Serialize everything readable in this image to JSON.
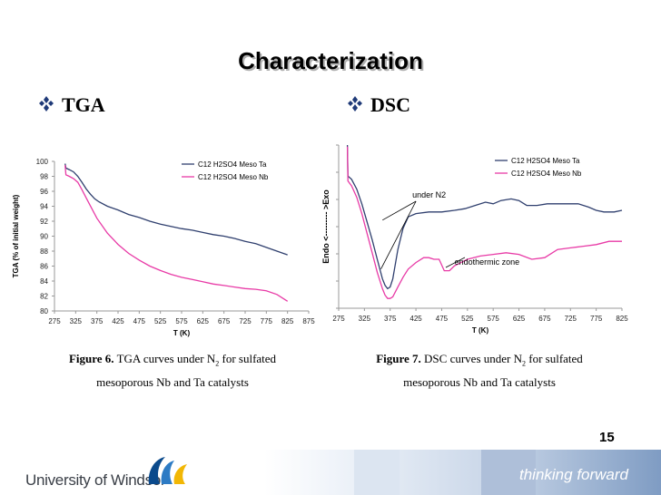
{
  "slide": {
    "title": "Characterization",
    "tga_bullet": "TGA",
    "dsc_bullet": "DSC",
    "fig6_label": "Figure 6.",
    "fig6_text1": "TGA curves under N",
    "fig6_sub": "2",
    "fig6_text2": "for sulfated",
    "fig6_line2": "mesoporous Nb and Ta catalysts",
    "fig7_label": "Figure 7.",
    "fig7_text1": "DSC curves under N",
    "fig7_sub": "2",
    "fig7_text2": "for sulfated",
    "fig7_line2": "mesoporous Nb and Ta catalysts",
    "page_number": "15",
    "university": "University of Windsor",
    "tagline": "thinking forward"
  },
  "colors": {
    "ta": "#2f3f6e",
    "nb": "#e83aa6",
    "bullet": "#1f3a78"
  },
  "chart_data": [
    {
      "type": "line",
      "title": "",
      "xlabel": "T (K)",
      "ylabel": "TGA (% of initial weight)",
      "xlim": [
        275,
        875
      ],
      "ylim": [
        80,
        100
      ],
      "xticks": [
        275,
        325,
        375,
        425,
        475,
        525,
        575,
        625,
        675,
        725,
        775,
        825,
        875
      ],
      "yticks": [
        80,
        82,
        84,
        86,
        88,
        90,
        92,
        94,
        96,
        98,
        100
      ],
      "legend_position": "top-right",
      "series": [
        {
          "name": "C12 H2SO4 Meso Ta",
          "color": "#2f3f6e",
          "x": [
            300,
            302,
            310,
            320,
            330,
            340,
            350,
            360,
            370,
            380,
            400,
            425,
            450,
            475,
            500,
            525,
            550,
            575,
            600,
            625,
            650,
            675,
            700,
            725,
            750,
            775,
            800,
            825
          ],
          "y": [
            99.7,
            99.1,
            98.9,
            98.6,
            98.0,
            97.2,
            96.3,
            95.6,
            95.0,
            94.6,
            94.0,
            93.5,
            92.9,
            92.5,
            92.0,
            91.6,
            91.3,
            91.0,
            90.8,
            90.5,
            90.2,
            90.0,
            89.7,
            89.3,
            89.0,
            88.5,
            88.0,
            87.5
          ]
        },
        {
          "name": "C12 H2SO4 Meso Nb",
          "color": "#e83aa6",
          "x": [
            300,
            302,
            310,
            320,
            330,
            340,
            350,
            375,
            400,
            425,
            450,
            475,
            500,
            525,
            550,
            575,
            600,
            625,
            650,
            675,
            700,
            725,
            750,
            775,
            800,
            825
          ],
          "y": [
            99.5,
            98.2,
            98.0,
            97.7,
            97.2,
            96.2,
            95.1,
            92.4,
            90.4,
            88.9,
            87.7,
            86.8,
            86.0,
            85.4,
            84.9,
            84.5,
            84.2,
            83.9,
            83.6,
            83.4,
            83.2,
            83.0,
            82.9,
            82.7,
            82.2,
            81.3
          ]
        }
      ]
    },
    {
      "type": "line",
      "title": "",
      "xlabel": "T (K)",
      "ylabel": "Endo <--------- >Exo",
      "xlim": [
        275,
        825
      ],
      "xticks": [
        275,
        325,
        375,
        425,
        475,
        525,
        575,
        625,
        675,
        725,
        775,
        825
      ],
      "y_tick_count": 7,
      "ylim": [
        0,
        10
      ],
      "legend_position": "top-right",
      "annotations": [
        "under N2",
        "endothermic zone"
      ],
      "series": [
        {
          "name": "C12 H2SO4 Meso Ta",
          "color": "#2f3f6e",
          "x": [
            292,
            293,
            300,
            310,
            320,
            330,
            340,
            350,
            360,
            365,
            370,
            375,
            380,
            390,
            400,
            410,
            425,
            450,
            475,
            500,
            520,
            540,
            560,
            575,
            590,
            610,
            625,
            640,
            660,
            680,
            700,
            720,
            740,
            760,
            775,
            790,
            800,
            810,
            825
          ],
          "y": [
            10.0,
            8.1,
            7.9,
            7.3,
            6.4,
            5.3,
            4.2,
            3.0,
            1.8,
            1.4,
            1.2,
            1.3,
            1.8,
            3.6,
            4.9,
            5.6,
            5.8,
            5.9,
            5.9,
            6.0,
            6.1,
            6.3,
            6.5,
            6.4,
            6.6,
            6.7,
            6.6,
            6.3,
            6.3,
            6.4,
            6.4,
            6.4,
            6.4,
            6.2,
            6.0,
            5.9,
            5.9,
            5.9,
            6.0
          ]
        },
        {
          "name": "C12 H2SO4 Meso Nb",
          "color": "#e83aa6",
          "x": [
            292,
            293,
            300,
            310,
            320,
            330,
            340,
            350,
            360,
            365,
            370,
            375,
            380,
            390,
            400,
            410,
            425,
            440,
            450,
            460,
            470,
            480,
            490,
            500,
            525,
            550,
            575,
            600,
            625,
            650,
            675,
            700,
            725,
            750,
            775,
            800,
            825
          ],
          "y": [
            9.9,
            7.8,
            7.5,
            6.8,
            5.8,
            4.6,
            3.4,
            2.2,
            1.2,
            0.8,
            0.6,
            0.6,
            0.7,
            1.3,
            1.9,
            2.4,
            2.8,
            3.1,
            3.1,
            3.0,
            3.0,
            2.3,
            2.3,
            2.6,
            3.0,
            3.2,
            3.3,
            3.4,
            3.3,
            3.0,
            3.1,
            3.6,
            3.7,
            3.8,
            3.9,
            4.1,
            4.1
          ]
        }
      ]
    }
  ]
}
